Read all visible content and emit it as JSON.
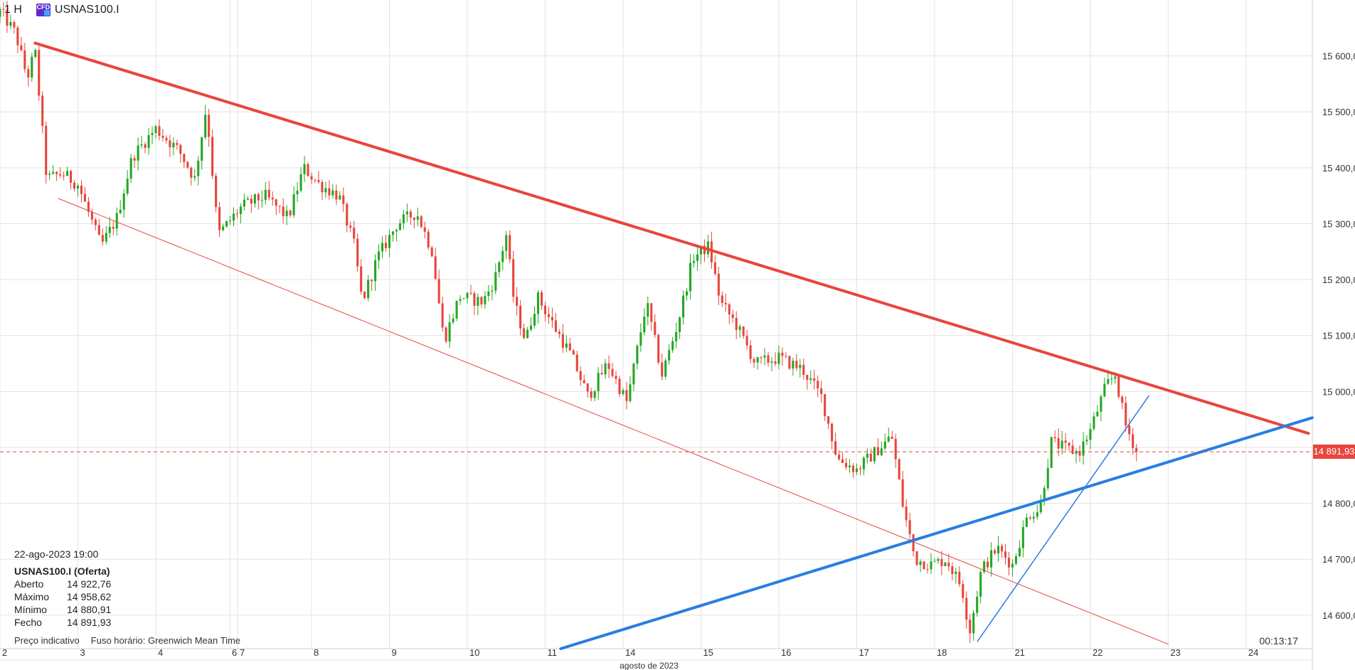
{
  "header": {
    "timeframe": "1 H",
    "badge": "CFD",
    "symbol": "USNAS100.I"
  },
  "info": {
    "date": "22-ago-2023 19:00",
    "name": "USNAS100.I (Oferta)",
    "rows": [
      {
        "k": "Aberto",
        "v": "14 922,76"
      },
      {
        "k": "Máximo",
        "v": "14 958,62"
      },
      {
        "k": "Mínimo",
        "v": "14 880,91"
      },
      {
        "k": "Fecho",
        "v": "14 891,93"
      }
    ]
  },
  "footer": {
    "price_type": "Preço indicativo",
    "timezone": "Fuso horário: Greenwich Mean Time"
  },
  "timer": "00:13:17",
  "current_price_label": "14 891,93",
  "colors": {
    "up": "#22a822",
    "down": "#e8453c",
    "trend_red": "#e8453c",
    "trend_blue": "#2a7de1",
    "grid": "#e3e3e3"
  },
  "chart_data": {
    "type": "candlestick",
    "y_ticks": [
      {
        "v": 14600,
        "label": "14 600,00"
      },
      {
        "v": 14700,
        "label": "14 700,00"
      },
      {
        "v": 14800,
        "label": "14 800,00"
      },
      {
        "v": 14900,
        "label": "14 900,00"
      },
      {
        "v": 15000,
        "label": "15 000,00"
      },
      {
        "v": 15100,
        "label": "15 100,00"
      },
      {
        "v": 15200,
        "label": "15 200,00"
      },
      {
        "v": 15300,
        "label": "15 300,00"
      },
      {
        "v": 15400,
        "label": "15 400,00"
      },
      {
        "v": 15500,
        "label": "15 500,00"
      },
      {
        "v": 15600,
        "label": "15 600,00"
      }
    ],
    "ylim": [
      14540,
      15700
    ],
    "x_days": [
      {
        "label": "2",
        "t": 0.0
      },
      {
        "label": "3",
        "t": 1.0
      },
      {
        "label": "4",
        "t": 2.0
      },
      {
        "label": "6",
        "t": 2.95
      },
      {
        "label": "7",
        "t": 3.05
      },
      {
        "label": "8",
        "t": 4.0
      },
      {
        "label": "9",
        "t": 5.0
      },
      {
        "label": "10",
        "t": 6.0
      },
      {
        "label": "11",
        "t": 7.0
      },
      {
        "label": "14",
        "t": 8.0
      },
      {
        "label": "15",
        "t": 9.0
      },
      {
        "label": "16",
        "t": 10.0
      },
      {
        "label": "17",
        "t": 11.0
      },
      {
        "label": "18",
        "t": 12.0
      },
      {
        "label": "21",
        "t": 13.0
      },
      {
        "label": "22",
        "t": 14.0
      },
      {
        "label": "23",
        "t": 15.0
      },
      {
        "label": "24",
        "t": 16.0
      }
    ],
    "x_range": [
      0,
      16.85
    ],
    "month_label": "agosto de 2023",
    "anchors": [
      [
        0.0,
        15680
      ],
      [
        0.2,
        15640
      ],
      [
        0.35,
        15560
      ],
      [
        0.45,
        15610
      ],
      [
        0.6,
        15380
      ],
      [
        0.8,
        15390
      ],
      [
        1.0,
        15370
      ],
      [
        1.3,
        15260
      ],
      [
        1.5,
        15310
      ],
      [
        1.7,
        15420
      ],
      [
        2.0,
        15470
      ],
      [
        2.3,
        15430
      ],
      [
        2.5,
        15380
      ],
      [
        2.65,
        15510
      ],
      [
        2.8,
        15280
      ],
      [
        3.1,
        15330
      ],
      [
        3.4,
        15350
      ],
      [
        3.7,
        15310
      ],
      [
        3.9,
        15400
      ],
      [
        4.1,
        15370
      ],
      [
        4.35,
        15350
      ],
      [
        4.55,
        15260
      ],
      [
        4.65,
        15160
      ],
      [
        4.85,
        15240
      ],
      [
        5.1,
        15300
      ],
      [
        5.35,
        15320
      ],
      [
        5.55,
        15250
      ],
      [
        5.7,
        15090
      ],
      [
        5.9,
        15170
      ],
      [
        6.2,
        15160
      ],
      [
        6.35,
        15200
      ],
      [
        6.5,
        15280
      ],
      [
        6.6,
        15160
      ],
      [
        6.75,
        15090
      ],
      [
        6.9,
        15170
      ],
      [
        7.1,
        15120
      ],
      [
        7.35,
        15060
      ],
      [
        7.55,
        14990
      ],
      [
        7.8,
        15050
      ],
      [
        8.05,
        14980
      ],
      [
        8.3,
        15160
      ],
      [
        8.5,
        15030
      ],
      [
        8.7,
        15120
      ],
      [
        8.9,
        15240
      ],
      [
        9.1,
        15260
      ],
      [
        9.25,
        15160
      ],
      [
        9.45,
        15120
      ],
      [
        9.7,
        15050
      ],
      [
        10.0,
        15060
      ],
      [
        10.3,
        15040
      ],
      [
        10.55,
        14990
      ],
      [
        10.75,
        14880
      ],
      [
        11.0,
        14860
      ],
      [
        11.3,
        14900
      ],
      [
        11.45,
        14920
      ],
      [
        11.6,
        14790
      ],
      [
        11.75,
        14700
      ],
      [
        11.95,
        14690
      ],
      [
        12.15,
        14700
      ],
      [
        12.35,
        14650
      ],
      [
        12.45,
        14570
      ],
      [
        12.6,
        14680
      ],
      [
        12.8,
        14720
      ],
      [
        13.0,
        14690
      ],
      [
        13.2,
        14780
      ],
      [
        13.35,
        14790
      ],
      [
        13.5,
        14910
      ],
      [
        13.65,
        14900
      ],
      [
        13.85,
        14890
      ],
      [
        14.0,
        14930
      ],
      [
        14.2,
        15010
      ],
      [
        14.32,
        15030
      ],
      [
        14.45,
        14940
      ],
      [
        14.6,
        14892
      ]
    ],
    "trendlines": [
      {
        "color": "red",
        "width": 4,
        "t0": 0.45,
        "p0": 15623,
        "t1": 16.8,
        "p1": 14925
      },
      {
        "color": "red",
        "width": 1,
        "t0": 0.75,
        "p0": 15345,
        "t1": 15.0,
        "p1": 14548
      },
      {
        "color": "blue",
        "width": 4,
        "t0": 7.2,
        "p0": 14540,
        "t1": 16.85,
        "p1": 14953
      },
      {
        "color": "blue",
        "width": 1.5,
        "t0": 12.55,
        "p0": 14553,
        "t1": 14.75,
        "p1": 14992
      }
    ],
    "current_price": 14891.93
  }
}
